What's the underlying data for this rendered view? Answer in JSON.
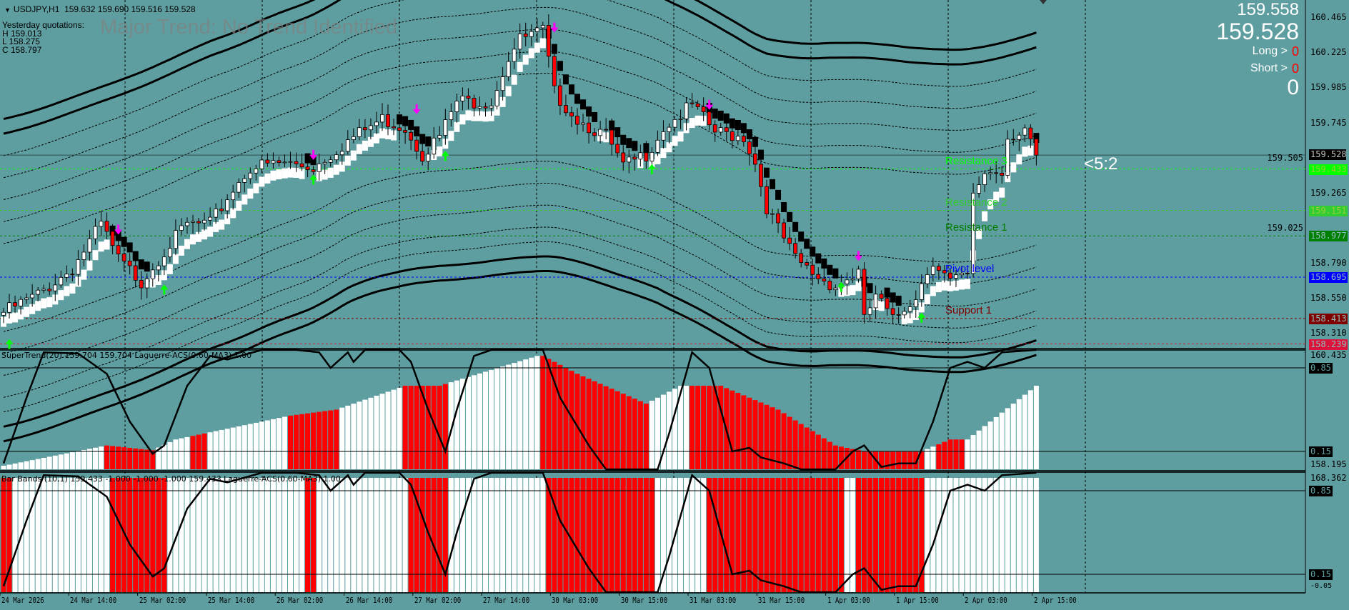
{
  "header": {
    "symbol": "USDJPY,H1",
    "ohlc": "159.632 159.690 159.516 159.528"
  },
  "yesterday": {
    "title": "Yesterday quotations:",
    "high": "H 159.013",
    "low": "L 158.275",
    "close": "C 158.797"
  },
  "watermark": "Major Trend: No Trend Identified",
  "info_panel": {
    "ask": "159.558",
    "bid": "159.528",
    "long_label": "Long >",
    "long_value": "0",
    "short_label": "Short >",
    "short_value": "0",
    "total": "0",
    "ratio": "<5:2"
  },
  "colors": {
    "background": "#5f9ea0",
    "bull": "#ffffff",
    "bear": "#ff0000",
    "sell_arrow": "#ff00ff",
    "buy_arrow": "#00ff00"
  },
  "price_axis": {
    "ticks": [
      "160.465",
      "160.225",
      "159.985",
      "159.745",
      "159.505",
      "159.265",
      "159.025",
      "158.790",
      "158.550",
      "158.310"
    ],
    "current": "159.528"
  },
  "levels": [
    {
      "price": "159.433",
      "label": "Resistance 3",
      "color": "#00ff00"
    },
    {
      "price": "159.151",
      "label": "Resistance 2",
      "color": "#32cd32"
    },
    {
      "price": "158.977",
      "label": "Resistance 1",
      "color": "#008000"
    },
    {
      "price": "158.695",
      "label": "Pivot level",
      "color": "#0000ff"
    },
    {
      "price": "158.413",
      "label": "Support 1",
      "color": "#800000"
    },
    {
      "price": "158.239",
      "label": "",
      "color": "#dc143c"
    }
  ],
  "time_axis": [
    "24 Mar 2026",
    "24 Mar 14:00",
    "25 Mar 02:00",
    "25 Mar 14:00",
    "26 Mar 02:00",
    "26 Mar 14:00",
    "27 Mar 02:00",
    "27 Mar 14:00",
    "30 Mar 03:00",
    "30 Mar 15:00",
    "31 Mar 03:00",
    "31 Mar 15:00",
    "1 Apr 03:00",
    "1 Apr 15:00",
    "2 Apr 03:00",
    "2 Apr 15:00"
  ],
  "price_path": [
    [
      0,
      158.455
    ],
    [
      6,
      158.575
    ],
    [
      12,
      158.755
    ],
    [
      17,
      159.055
    ],
    [
      20,
      158.815
    ],
    [
      24,
      158.665
    ],
    [
      28,
      158.875
    ],
    [
      32,
      159.055
    ],
    [
      36,
      159.055
    ],
    [
      40,
      159.295
    ],
    [
      43,
      159.445
    ],
    [
      49,
      159.475
    ],
    [
      54,
      159.445
    ],
    [
      60,
      159.625
    ],
    [
      66,
      159.775
    ],
    [
      70,
      159.715
    ],
    [
      73,
      159.535
    ],
    [
      76,
      159.655
    ],
    [
      79,
      159.895
    ],
    [
      85,
      159.895
    ],
    [
      88,
      160.195
    ],
    [
      90,
      160.315
    ],
    [
      94,
      160.375
    ],
    [
      96,
      159.955
    ],
    [
      100,
      159.775
    ],
    [
      105,
      159.655
    ],
    [
      108,
      159.445
    ],
    [
      112,
      159.535
    ],
    [
      115,
      159.715
    ],
    [
      120,
      159.865
    ],
    [
      124,
      159.685
    ],
    [
      129,
      159.655
    ],
    [
      131,
      159.475
    ],
    [
      133,
      159.175
    ],
    [
      135,
      159.025
    ],
    [
      138,
      158.815
    ],
    [
      142,
      158.695
    ],
    [
      145,
      158.635
    ],
    [
      149,
      158.725
    ],
    [
      150,
      158.395
    ],
    [
      152,
      158.575
    ],
    [
      155,
      158.395
    ],
    [
      159,
      158.575
    ],
    [
      162,
      158.815
    ],
    [
      165,
      158.665
    ],
    [
      168,
      158.695
    ],
    [
      169,
      159.235
    ],
    [
      171,
      159.415
    ],
    [
      174,
      159.415
    ],
    [
      175,
      159.655
    ],
    [
      178,
      159.715
    ],
    [
      180,
      159.528
    ]
  ],
  "arrows": {
    "sell": [
      [
        20,
        158.995
      ],
      [
        54,
        159.505
      ],
      [
        72,
        159.817
      ],
      [
        96,
        160.375
      ],
      [
        123,
        159.847
      ],
      [
        149,
        158.815
      ]
    ],
    "buy": [
      [
        1,
        158.263
      ],
      [
        28,
        158.635
      ],
      [
        54,
        159.385
      ],
      [
        77,
        159.547
      ],
      [
        113,
        159.457
      ],
      [
        146,
        158.653
      ],
      [
        160,
        158.443
      ]
    ]
  },
  "supertrend_panel": {
    "label": "SuperTrend(20) 159.704 159.704  Laguerre-ACS(0.60-MA3) 1.00",
    "scale_top": "160.435",
    "scale_bottom": "158.195",
    "level_high": "0.85",
    "level_low": "0.15",
    "histogram": [
      [
        0,
        0.03
      ],
      [
        18,
        0.2
      ],
      [
        26,
        0.16
      ],
      [
        30,
        0.25
      ],
      [
        50,
        0.45
      ],
      [
        58,
        0.5
      ],
      [
        70,
        0.7
      ],
      [
        76,
        0.7
      ],
      [
        93,
        0.95
      ],
      [
        94,
        0.95
      ],
      [
        100,
        0.8
      ],
      [
        112,
        0.55
      ],
      [
        118,
        0.7
      ],
      [
        125,
        0.7
      ],
      [
        135,
        0.5
      ],
      [
        145,
        0.2
      ],
      [
        150,
        0.15
      ],
      [
        160,
        0.15
      ],
      [
        165,
        0.25
      ],
      [
        168,
        0.25
      ],
      [
        172,
        0.4
      ],
      [
        180,
        0.7
      ]
    ],
    "red_ranges": [
      [
        18,
        26
      ],
      [
        33,
        35
      ],
      [
        50,
        58
      ],
      [
        70,
        77
      ],
      [
        94,
        112
      ],
      [
        120,
        160
      ],
      [
        163,
        167
      ]
    ]
  },
  "barbands_panel": {
    "label": "Bar Bands (10,1) 159.433 -1.000 -1.000 -1.000 159.433  Laguerre-ACS(0.60-MA3) 1.00",
    "scale_top": "168.362",
    "scale_bottom": "-0.05",
    "level_high": "0.85",
    "level_low": "0.15",
    "red_ranges": [
      [
        0,
        1
      ],
      [
        19,
        28
      ],
      [
        53,
        54
      ],
      [
        71,
        77
      ],
      [
        95,
        113
      ],
      [
        123,
        146
      ],
      [
        149,
        160
      ]
    ]
  },
  "laguerre": [
    [
      0,
      0.05
    ],
    [
      4,
      0.6
    ],
    [
      7,
      0.98
    ],
    [
      13,
      0.97
    ],
    [
      18,
      0.8
    ],
    [
      22,
      0.4
    ],
    [
      26,
      0.13
    ],
    [
      28,
      0.2
    ],
    [
      32,
      0.7
    ],
    [
      36,
      0.95
    ],
    [
      39,
      0.92
    ],
    [
      45,
      1
    ],
    [
      51,
      1
    ],
    [
      55,
      0.98
    ],
    [
      57,
      0.85
    ],
    [
      60,
      0.98
    ],
    [
      61,
      0.9
    ],
    [
      63,
      1
    ],
    [
      69,
      1
    ],
    [
      71,
      0.9
    ],
    [
      74,
      0.5
    ],
    [
      77,
      0.15
    ],
    [
      79,
      0.5
    ],
    [
      82,
      0.95
    ],
    [
      85,
      1
    ],
    [
      94,
      1
    ],
    [
      97,
      0.6
    ],
    [
      102,
      0.2
    ],
    [
      105,
      0
    ],
    [
      114,
      0
    ],
    [
      116,
      0.3
    ],
    [
      120,
      0.98
    ],
    [
      123,
      0.85
    ],
    [
      127,
      0.15
    ],
    [
      130,
      0.18
    ],
    [
      132,
      0.1
    ],
    [
      136,
      0.05
    ],
    [
      139,
      0
    ],
    [
      145,
      0
    ],
    [
      148,
      0.15
    ],
    [
      150,
      0.2
    ],
    [
      153,
      0.02
    ],
    [
      156,
      0.05
    ],
    [
      159,
      0.05
    ],
    [
      162,
      0.4
    ],
    [
      165,
      0.85
    ],
    [
      168,
      0.9
    ],
    [
      171,
      0.85
    ],
    [
      174,
      0.98
    ],
    [
      180,
      1
    ]
  ]
}
